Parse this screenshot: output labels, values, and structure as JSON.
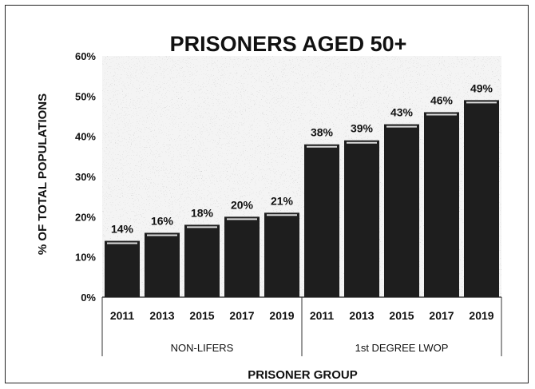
{
  "chart_data": {
    "type": "bar",
    "title": "PRISONERS AGED 50+",
    "xlabel": "PRISONER GROUP",
    "ylabel": "% OF TOTAL POPULATIONS",
    "ylim": [
      0,
      60
    ],
    "yticks": [
      "0%",
      "10%",
      "20%",
      "30%",
      "40%",
      "50%",
      "60%"
    ],
    "grid": false,
    "groups": [
      {
        "name": "NON-LIFERS",
        "categories": [
          "2011",
          "2013",
          "2015",
          "2017",
          "2019"
        ],
        "values": [
          14,
          16,
          18,
          20,
          21
        ],
        "labels": [
          "14%",
          "16%",
          "18%",
          "20%",
          "21%"
        ]
      },
      {
        "name": "1st DEGREE LWOP",
        "categories": [
          "2011",
          "2013",
          "2015",
          "2017",
          "2019"
        ],
        "values": [
          38,
          39,
          43,
          46,
          49
        ],
        "labels": [
          "38%",
          "39%",
          "43%",
          "46%",
          "49%"
        ]
      }
    ],
    "colors": {
      "bar": "#1e1e1e",
      "plot_background": "#e9e9e9",
      "text": "#111111"
    }
  }
}
